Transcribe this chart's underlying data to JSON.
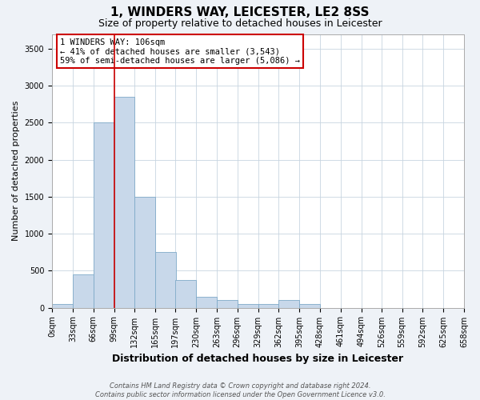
{
  "title": "1, WINDERS WAY, LEICESTER, LE2 8SS",
  "subtitle": "Size of property relative to detached houses in Leicester",
  "xlabel": "Distribution of detached houses by size in Leicester",
  "ylabel": "Number of detached properties",
  "footnote1": "Contains HM Land Registry data © Crown copyright and database right 2024.",
  "footnote2": "Contains public sector information licensed under the Open Government Licence v3.0.",
  "annotation_line1": "1 WINDERS WAY: 106sqm",
  "annotation_line2": "← 41% of detached houses are smaller (3,543)",
  "annotation_line3": "59% of semi-detached houses are larger (5,086) →",
  "bin_edges": [
    0,
    33,
    66,
    99,
    132,
    165,
    197,
    230,
    263,
    296,
    329,
    362,
    395,
    428,
    461,
    494,
    526,
    559,
    592,
    625,
    658
  ],
  "bin_labels": [
    "0sqm",
    "33sqm",
    "66sqm",
    "99sqm",
    "132sqm",
    "165sqm",
    "197sqm",
    "230sqm",
    "263sqm",
    "296sqm",
    "329sqm",
    "362sqm",
    "395sqm",
    "428sqm",
    "461sqm",
    "494sqm",
    "526sqm",
    "559sqm",
    "592sqm",
    "625sqm",
    "658sqm"
  ],
  "bar_heights": [
    50,
    450,
    2500,
    2850,
    1500,
    750,
    375,
    150,
    100,
    50,
    50,
    100,
    50,
    0,
    0,
    0,
    0,
    0,
    0,
    0
  ],
  "bar_color": "#c8d8ea",
  "bar_edge_color": "#7faac8",
  "vline_x": 99,
  "vline_color": "#cc0000",
  "ylim": [
    0,
    3700
  ],
  "yticks": [
    0,
    500,
    1000,
    1500,
    2000,
    2500,
    3000,
    3500
  ],
  "bg_color": "#eef2f7",
  "plot_bg_color": "#ffffff",
  "grid_color": "#c8d4e0",
  "title_fontsize": 11,
  "subtitle_fontsize": 9,
  "xlabel_fontsize": 9,
  "ylabel_fontsize": 8,
  "annotation_fontsize": 7.5,
  "tick_fontsize": 7,
  "footnote_fontsize": 6,
  "annotation_box_color": "#ffffff",
  "annotation_box_edge": "#cc0000"
}
